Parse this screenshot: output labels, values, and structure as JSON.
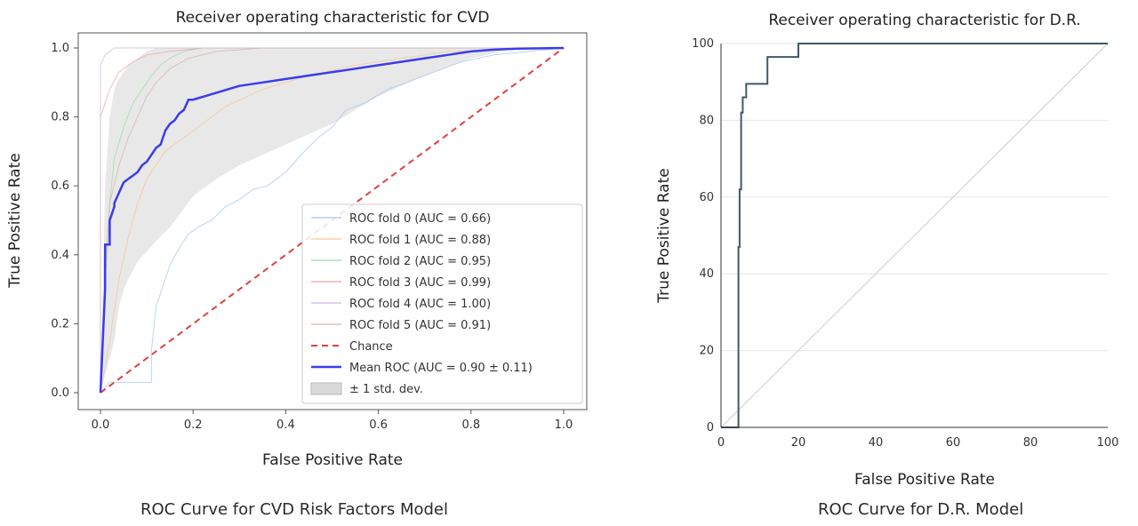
{
  "captions": {
    "left": "ROC Curve for CVD Risk Factors Model",
    "right": "ROC Curve for D.R. Model"
  },
  "chart_data": [
    {
      "type": "line",
      "title": "Receiver operating characteristic for CVD",
      "xlabel": "False Positive Rate",
      "ylabel": "True Positive Rate",
      "xlim": [
        0,
        1
      ],
      "ylim": [
        0,
        1
      ],
      "xticks": [
        "0.0",
        "0.2",
        "0.4",
        "0.6",
        "0.8",
        "1.0"
      ],
      "yticks": [
        "0.0",
        "0.2",
        "0.4",
        "0.6",
        "0.8",
        "1.0"
      ],
      "legend_position": "lower-right",
      "series": [
        {
          "name": "ROC fold 0 (AUC = 0.66)",
          "color": "#a9c4e8",
          "x": [
            0,
            0.02,
            0.11,
            0.11,
            0.12,
            0.13,
            0.15,
            0.17,
            0.19,
            0.21,
            0.24,
            0.27,
            0.3,
            0.33,
            0.36,
            0.4,
            0.44,
            0.47,
            0.5,
            0.53,
            0.57,
            0.62,
            0.66,
            0.7,
            0.74,
            0.78,
            0.85,
            1.0
          ],
          "y": [
            0,
            0.03,
            0.03,
            0.12,
            0.25,
            0.29,
            0.37,
            0.42,
            0.46,
            0.48,
            0.5,
            0.54,
            0.56,
            0.59,
            0.6,
            0.64,
            0.7,
            0.74,
            0.77,
            0.82,
            0.84,
            0.88,
            0.9,
            0.92,
            0.94,
            0.96,
            0.98,
            1.0
          ]
        },
        {
          "name": "ROC fold 1 (AUC = 0.88)",
          "color": "#f2c79a",
          "x": [
            0,
            0.02,
            0.04,
            0.06,
            0.08,
            0.1,
            0.14,
            0.2,
            0.27,
            0.35,
            0.45,
            0.55,
            0.65,
            0.75,
            1.0
          ],
          "y": [
            0,
            0.15,
            0.33,
            0.45,
            0.55,
            0.62,
            0.7,
            0.76,
            0.83,
            0.88,
            0.92,
            0.95,
            0.97,
            0.99,
            1.0
          ]
        },
        {
          "name": "ROC fold 2 (AUC = 0.95)",
          "color": "#a8d8a8",
          "x": [
            0,
            0.01,
            0.02,
            0.03,
            0.05,
            0.07,
            0.09,
            0.11,
            0.13,
            0.15,
            0.18,
            0.22,
            0.3,
            1.0
          ],
          "y": [
            0,
            0.3,
            0.55,
            0.68,
            0.77,
            0.84,
            0.88,
            0.92,
            0.95,
            0.97,
            0.99,
            1.0,
            1.0,
            1.0
          ]
        },
        {
          "name": "ROC fold 3 (AUC = 0.99)",
          "color": "#eaa8a8",
          "x": [
            0,
            0.0,
            0.02,
            0.04,
            0.07,
            0.1,
            0.15,
            0.22,
            1.0
          ],
          "y": [
            0,
            0.8,
            0.88,
            0.93,
            0.96,
            0.98,
            0.99,
            1.0,
            1.0
          ]
        },
        {
          "name": "ROC fold 4 (AUC = 1.00)",
          "color": "#cdb8e0",
          "x": [
            0,
            0.0,
            0.01,
            0.02,
            0.03,
            1.0
          ],
          "y": [
            0,
            0.95,
            0.98,
            0.99,
            1.0,
            1.0
          ]
        },
        {
          "name": "ROC fold 5 (AUC = 0.91)",
          "color": "#d2b8a8",
          "x": [
            0,
            0.01,
            0.02,
            0.04,
            0.06,
            0.08,
            0.1,
            0.12,
            0.15,
            0.19,
            0.25,
            0.35,
            0.45,
            1.0
          ],
          "y": [
            0,
            0.35,
            0.55,
            0.66,
            0.74,
            0.8,
            0.86,
            0.9,
            0.94,
            0.97,
            0.99,
            1.0,
            1.0,
            1.0
          ]
        },
        {
          "name": "Chance",
          "color": "#e04040",
          "dashed": true,
          "x": [
            0,
            1
          ],
          "y": [
            0,
            1
          ]
        },
        {
          "name": "Mean ROC (AUC = 0.90 ± 0.11)",
          "color": "#3b3bf0",
          "x": [
            0,
            0.01,
            0.01,
            0.02,
            0.02,
            0.03,
            0.03,
            0.04,
            0.05,
            0.06,
            0.07,
            0.08,
            0.09,
            0.1,
            0.11,
            0.12,
            0.13,
            0.14,
            0.15,
            0.16,
            0.17,
            0.18,
            0.19,
            0.2,
            0.25,
            0.3,
            0.35,
            0.4,
            0.45,
            0.5,
            0.55,
            0.6,
            0.65,
            0.7,
            0.75,
            0.8,
            0.85,
            0.9,
            1.0
          ],
          "y": [
            0,
            0.3,
            0.43,
            0.43,
            0.5,
            0.54,
            0.55,
            0.58,
            0.61,
            0.62,
            0.63,
            0.64,
            0.66,
            0.67,
            0.69,
            0.71,
            0.72,
            0.76,
            0.78,
            0.79,
            0.81,
            0.82,
            0.85,
            0.85,
            0.87,
            0.89,
            0.9,
            0.91,
            0.92,
            0.93,
            0.94,
            0.95,
            0.96,
            0.97,
            0.98,
            0.99,
            0.995,
            0.998,
            1.0
          ]
        }
      ],
      "band": {
        "name": "± 1 std. dev.",
        "color": "#d9d9d9",
        "x": [
          0,
          0.01,
          0.02,
          0.03,
          0.04,
          0.05,
          0.06,
          0.08,
          0.1,
          0.12,
          0.15,
          0.2,
          0.25,
          0.3,
          0.4,
          0.5,
          0.6,
          0.7,
          0.8,
          0.9,
          1.0
        ],
        "lower": [
          0,
          0.05,
          0.1,
          0.15,
          0.25,
          0.3,
          0.33,
          0.38,
          0.41,
          0.44,
          0.48,
          0.57,
          0.62,
          0.66,
          0.72,
          0.78,
          0.86,
          0.92,
          0.97,
          1.0,
          1.0
        ],
        "upper": [
          0,
          0.6,
          0.8,
          0.88,
          0.91,
          0.93,
          0.95,
          0.97,
          0.99,
          1.0,
          1.0,
          1.0,
          1.0,
          1.0,
          1.0,
          1.0,
          1.0,
          1.0,
          1.0,
          1.0,
          1.0
        ]
      }
    },
    {
      "type": "line",
      "title": "Receiver operating characteristic for D.R.",
      "xlabel": "False Positive Rate",
      "ylabel": "True Positive Rate",
      "xlim": [
        0,
        100
      ],
      "ylim": [
        0,
        100
      ],
      "xticks": [
        "0",
        "20",
        "40",
        "60",
        "80",
        "100"
      ],
      "yticks": [
        "0",
        "20",
        "40",
        "60",
        "80",
        "100"
      ],
      "grid": true,
      "series": [
        {
          "name": "",
          "color": "#3f5a66",
          "x": [
            0,
            4.5,
            4.5,
            4.8,
            4.8,
            5.2,
            5.2,
            5.6,
            5.6,
            6.5,
            6.5,
            12,
            12,
            20,
            20,
            100
          ],
          "y": [
            0,
            0,
            47,
            47,
            62,
            62,
            82,
            82,
            86,
            86,
            89.5,
            89.5,
            96.5,
            96.5,
            100,
            100
          ]
        },
        {
          "name": "",
          "color": "#cfd4d8",
          "x": [
            0,
            100
          ],
          "y": [
            0,
            100
          ]
        }
      ]
    }
  ]
}
